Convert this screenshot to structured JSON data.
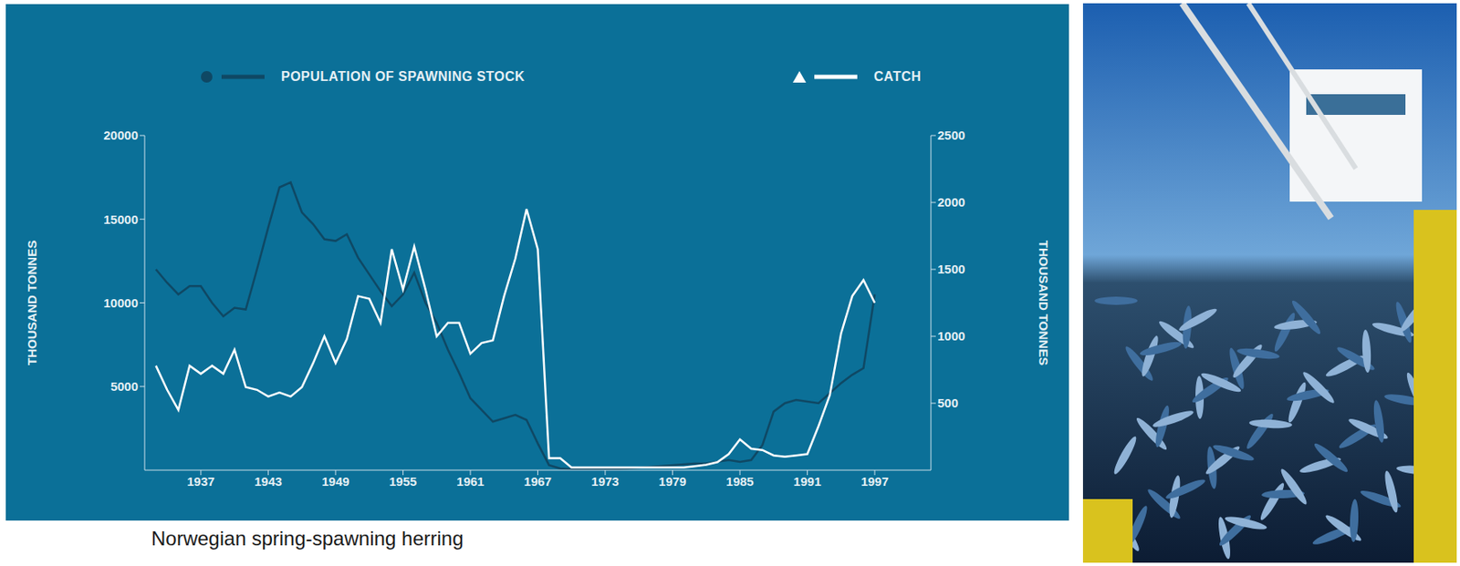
{
  "chart_data": {
    "type": "line",
    "caption": "Norwegian spring-spawning herring",
    "y_label": "THOUSAND TONNES",
    "y2_label": "THOUSAND TONNES",
    "legend": "top",
    "grid": false,
    "x": [
      1933,
      1934,
      1935,
      1936,
      1937,
      1938,
      1939,
      1940,
      1941,
      1942,
      1943,
      1944,
      1945,
      1946,
      1947,
      1948,
      1949,
      1950,
      1951,
      1952,
      1953,
      1954,
      1955,
      1956,
      1957,
      1958,
      1959,
      1960,
      1961,
      1962,
      1963,
      1964,
      1965,
      1966,
      1967,
      1968,
      1969,
      1970,
      1971,
      1972,
      1973,
      1974,
      1975,
      1976,
      1977,
      1978,
      1979,
      1980,
      1981,
      1982,
      1983,
      1984,
      1985,
      1986,
      1987,
      1988,
      1989,
      1990,
      1991,
      1992,
      1993,
      1994,
      1995,
      1996,
      1997
    ],
    "xlim": [
      1932,
      2002
    ],
    "xticks": [
      1937,
      1943,
      1949,
      1955,
      1961,
      1967,
      1973,
      1979,
      1985,
      1991,
      1997
    ],
    "ylim": [
      0,
      20000
    ],
    "yticks": [
      5000,
      10000,
      15000,
      20000
    ],
    "y2lim": [
      0,
      2500
    ],
    "y2ticks": [
      500,
      1000,
      1500,
      2000,
      2500
    ],
    "series": [
      {
        "name": "POPULATION OF SPAWNING STOCK",
        "color": "#0f4864",
        "marker": "circle",
        "values": [
          12000,
          11200,
          10500,
          11000,
          11000,
          10000,
          9200,
          9700,
          9600,
          12000,
          14500,
          16900,
          17200,
          15400,
          14700,
          13800,
          13700,
          14100,
          12700,
          11700,
          10700,
          9800,
          10500,
          11800,
          10000,
          8800,
          7200,
          5800,
          4300,
          3600,
          2900,
          3100,
          3300,
          3000,
          1600,
          300,
          100,
          50,
          50,
          50,
          50,
          50,
          100,
          150,
          200,
          250,
          300,
          350,
          400,
          400,
          500,
          600,
          500,
          600,
          1500,
          3500,
          4000,
          4200,
          4100,
          4000,
          4600,
          5200,
          5700,
          6100,
          10500
        ]
      },
      {
        "name": "CATCH",
        "color": "#ffffff",
        "marker": "triangle",
        "axis": "y2",
        "values": [
          780,
          600,
          450,
          780,
          720,
          780,
          720,
          900,
          620,
          600,
          550,
          580,
          550,
          620,
          800,
          1000,
          800,
          980,
          1300,
          1280,
          1100,
          1650,
          1350,
          1670,
          1350,
          1000,
          1100,
          1100,
          870,
          950,
          970,
          1300,
          1580,
          1950,
          1650,
          90,
          90,
          20,
          20,
          20,
          20,
          20,
          20,
          20,
          20,
          20,
          20,
          20,
          30,
          40,
          60,
          120,
          230,
          160,
          150,
          110,
          100,
          110,
          120,
          330,
          560,
          1020,
          1300,
          1420,
          1250
        ]
      }
    ]
  }
}
